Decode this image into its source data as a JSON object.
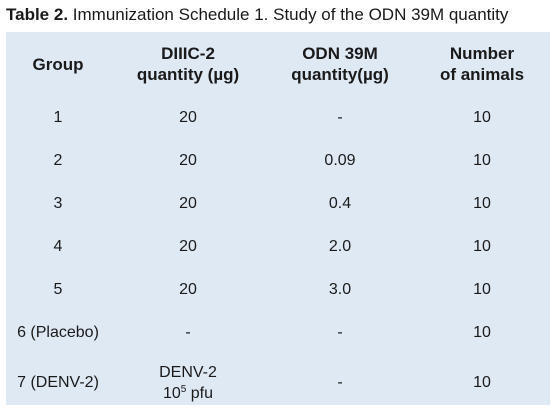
{
  "caption": {
    "label": "Table 2.",
    "text": "Immunization Schedule 1. Study of the ODN 39M quantity"
  },
  "header": {
    "group": "Group",
    "diiic_line1": "DIIIC-2",
    "diiic_line2": "quantity (µg)",
    "odn_line1": "ODN 39M",
    "odn_line2": "quantity(µg)",
    "animals_line1": "Number",
    "animals_line2": "of animals"
  },
  "rows": [
    {
      "group": "1",
      "diiic": "20",
      "odn": "-",
      "animals": "10"
    },
    {
      "group": "2",
      "diiic": "20",
      "odn": "0.09",
      "animals": "10"
    },
    {
      "group": "3",
      "diiic": "20",
      "odn": "0.4",
      "animals": "10"
    },
    {
      "group": "4",
      "diiic": "20",
      "odn": "2.0",
      "animals": "10"
    },
    {
      "group": "5",
      "diiic": "20",
      "odn": "3.0",
      "animals": "10"
    },
    {
      "group": "6 (Placebo)",
      "diiic": "-",
      "odn": "-",
      "animals": "10"
    },
    {
      "group": "7 (DENV-2)",
      "diiic_line1": "DENV-2",
      "diiic_base": "10",
      "diiic_exp": "5",
      "diiic_unit": " pfu",
      "odn": "-",
      "animals": "10"
    }
  ]
}
